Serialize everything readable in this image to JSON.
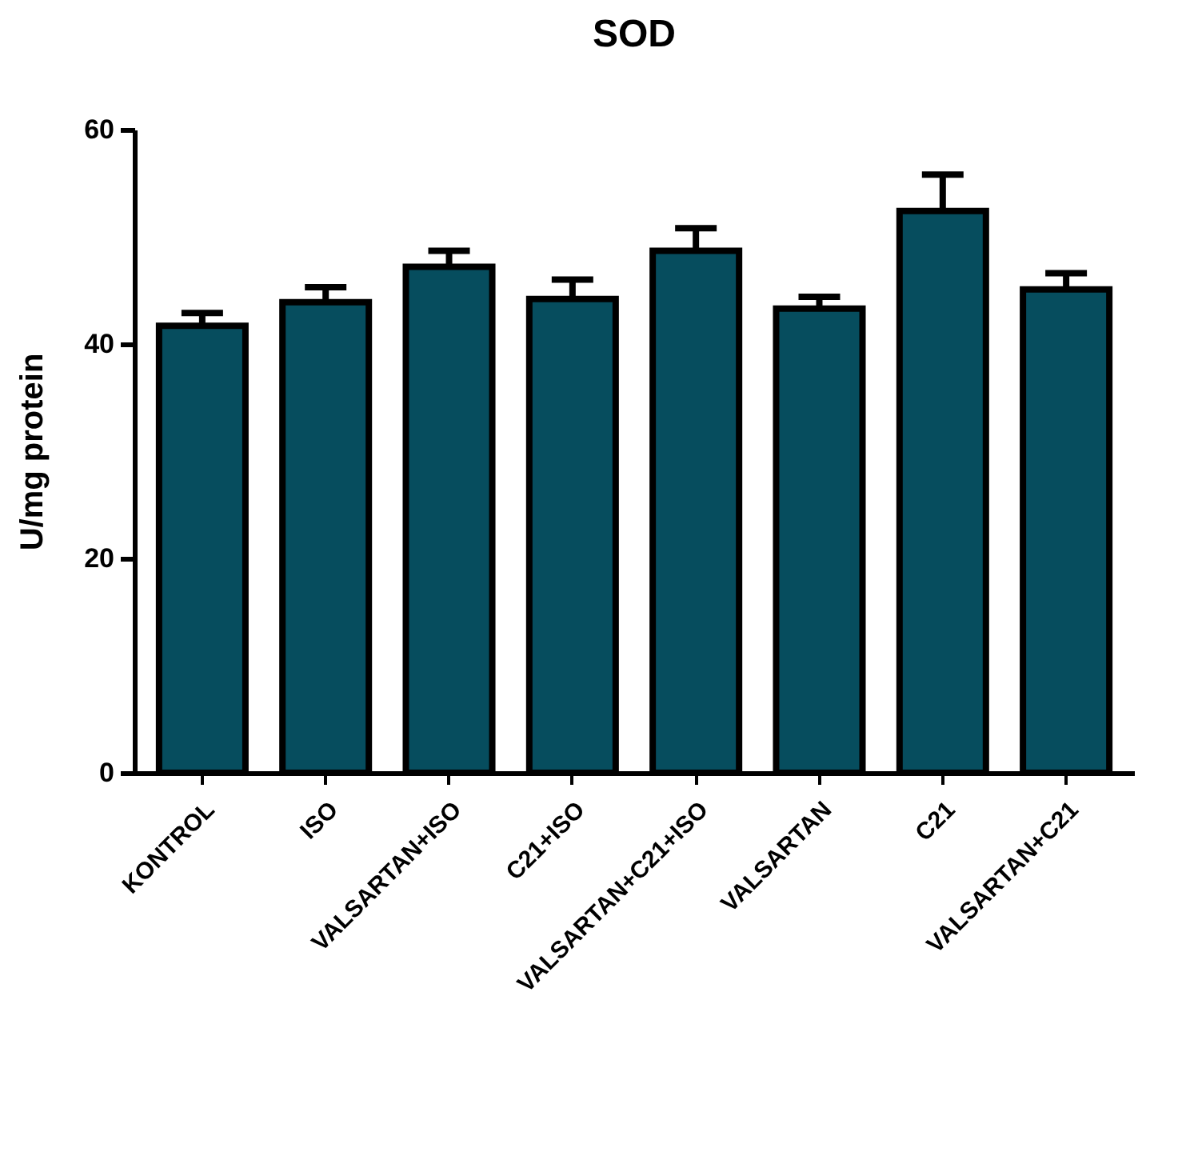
{
  "chart_data": {
    "type": "bar",
    "title": "SOD",
    "ylabel": "U/mg protein",
    "categories": [
      "KONTROL",
      "ISO",
      "VALSARTAN+ISO",
      "C21+ISO",
      "VALSARTAN+C21+ISO",
      "VALSARTAN",
      "C21",
      "VALSARTAN+C21"
    ],
    "values": [
      41.7,
      43.9,
      47.2,
      44.2,
      48.7,
      43.3,
      52.4,
      45.1
    ],
    "errors": [
      [
        41.7,
        42.9
      ],
      [
        43.9,
        45.3
      ],
      [
        47.2,
        48.7
      ],
      [
        44.2,
        46.0
      ],
      [
        48.7,
        50.8
      ],
      [
        43.3,
        44.4
      ],
      [
        52.4,
        55.8
      ],
      [
        45.1,
        46.6
      ]
    ],
    "color": "#064d5e",
    "ylim": [
      0,
      60
    ],
    "yticks": [
      0,
      20,
      40,
      60
    ],
    "grid": false
  }
}
